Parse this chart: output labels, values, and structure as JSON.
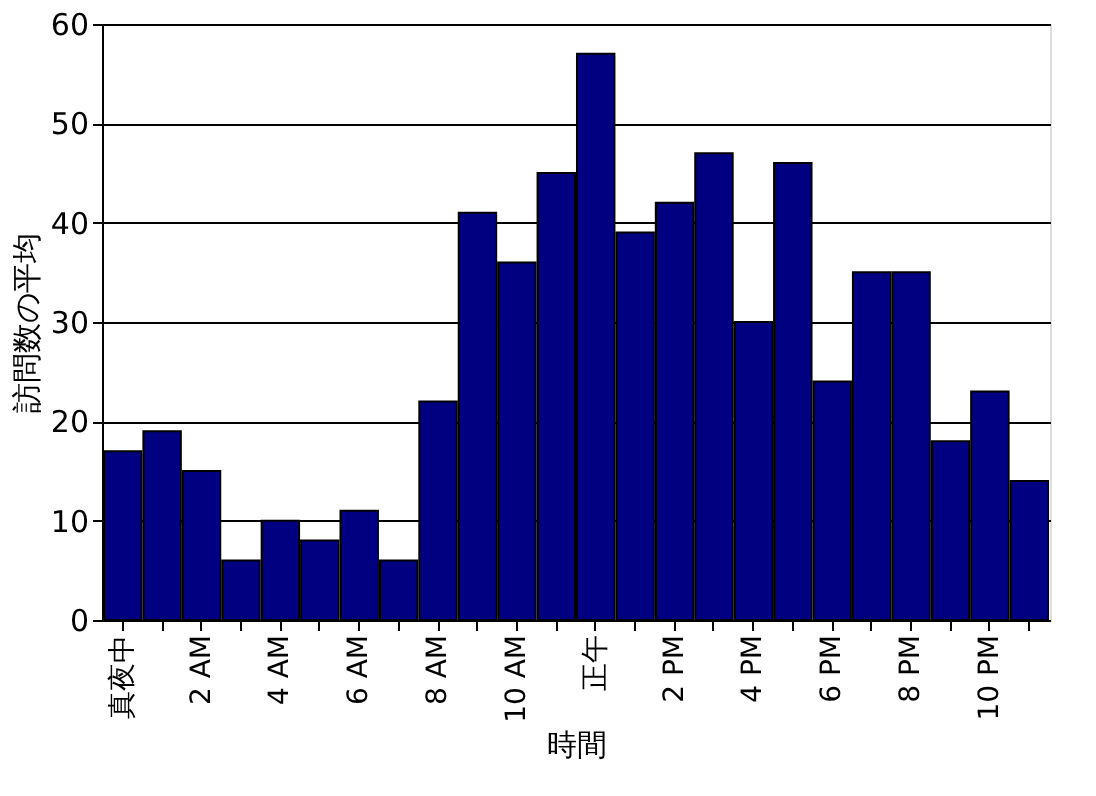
{
  "chart_data": {
    "type": "bar",
    "xlabel": "時間",
    "ylabel": "訪問数の平均",
    "categories": [
      "真夜中",
      null,
      "2 AM",
      null,
      "4 AM",
      null,
      "6 AM",
      null,
      "8 AM",
      null,
      "10 AM",
      null,
      "正午",
      null,
      "2 PM",
      null,
      "4 PM",
      null,
      "6 PM",
      null,
      "8 PM",
      null,
      "10 PM",
      null
    ],
    "values": [
      17,
      19,
      15,
      6,
      10,
      8,
      11,
      6,
      22,
      41,
      36,
      45,
      57,
      39,
      42,
      47,
      30,
      46,
      24,
      35,
      35,
      18,
      23,
      14
    ],
    "color": "#000080",
    "ylim": [
      0,
      60
    ],
    "yticks": [
      0,
      10,
      20,
      30,
      40,
      50,
      60
    ],
    "grid": "y"
  }
}
